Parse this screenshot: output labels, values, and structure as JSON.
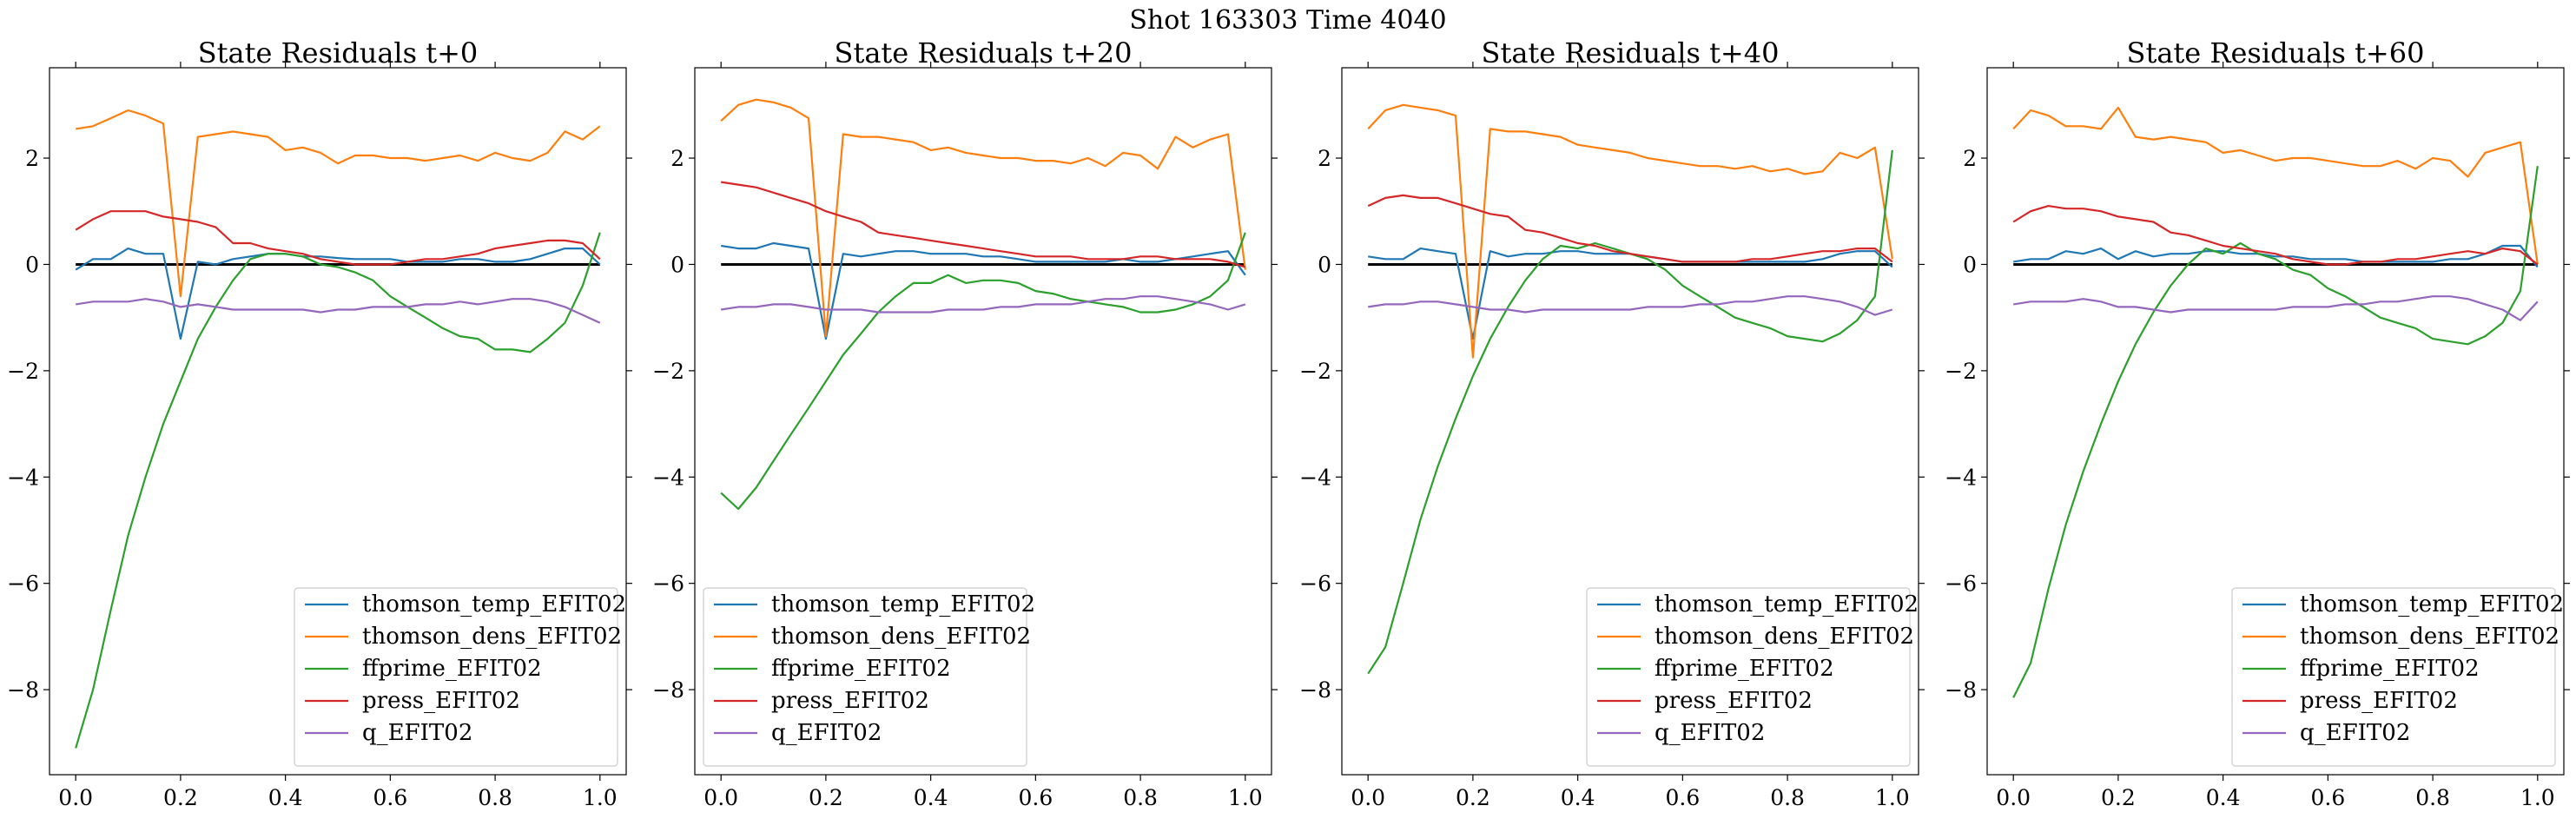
{
  "suptitle": "Shot 163303   Time 4040",
  "chart_data": [
    {
      "type": "line",
      "title": "State Residuals t+0",
      "xlim": [
        -0.05,
        1.05
      ],
      "ylim": [
        -9.6,
        3.7
      ],
      "xticks": [
        0.0,
        0.2,
        0.4,
        0.6,
        0.8,
        1.0
      ],
      "xtick_labels": [
        "0.0",
        "0.2",
        "0.4",
        "0.6",
        "0.8",
        "1.0"
      ],
      "yticks": [
        -8,
        -6,
        -4,
        -2,
        0,
        2
      ],
      "ytick_labels": [
        "−8",
        "−6",
        "−4",
        "−2",
        "0",
        "2"
      ],
      "legend_position": "lower-right",
      "reference_line": 0,
      "x": [
        0.0,
        0.033,
        0.067,
        0.1,
        0.133,
        0.167,
        0.2,
        0.233,
        0.267,
        0.3,
        0.333,
        0.367,
        0.4,
        0.433,
        0.467,
        0.5,
        0.533,
        0.567,
        0.6,
        0.633,
        0.667,
        0.7,
        0.733,
        0.767,
        0.8,
        0.833,
        0.867,
        0.9,
        0.933,
        0.967,
        1.0
      ],
      "series": [
        {
          "name": "thomson_temp_EFIT02",
          "color": "#1f77b4",
          "values": [
            -0.1,
            0.1,
            0.1,
            0.3,
            0.2,
            0.2,
            -1.4,
            0.05,
            0.0,
            0.1,
            0.15,
            0.2,
            0.2,
            0.15,
            0.15,
            0.12,
            0.1,
            0.1,
            0.1,
            0.05,
            0.05,
            0.05,
            0.1,
            0.1,
            0.05,
            0.05,
            0.1,
            0.2,
            0.3,
            0.3,
            0.0
          ]
        },
        {
          "name": "thomson_dens_EFIT02",
          "color": "#ff7f0e",
          "values": [
            2.55,
            2.6,
            2.75,
            2.9,
            2.8,
            2.65,
            -0.6,
            2.4,
            2.45,
            2.5,
            2.45,
            2.4,
            2.15,
            2.2,
            2.1,
            1.9,
            2.05,
            2.05,
            2.0,
            2.0,
            1.95,
            2.0,
            2.05,
            1.95,
            2.1,
            2.0,
            1.95,
            2.1,
            2.5,
            2.35,
            2.6
          ]
        },
        {
          "name": "ffprime_EFIT02",
          "color": "#2ca02c",
          "values": [
            -9.1,
            -8.0,
            -6.5,
            -5.1,
            -4.0,
            -3.0,
            -2.2,
            -1.4,
            -0.8,
            -0.3,
            0.1,
            0.2,
            0.2,
            0.15,
            0.0,
            -0.05,
            -0.15,
            -0.3,
            -0.6,
            -0.8,
            -1.0,
            -1.2,
            -1.35,
            -1.4,
            -1.6,
            -1.6,
            -1.65,
            -1.4,
            -1.1,
            -0.4,
            0.6
          ]
        },
        {
          "name": "press_EFIT02",
          "color": "#d62728",
          "values": [
            0.65,
            0.85,
            1.0,
            1.0,
            1.0,
            0.9,
            0.85,
            0.8,
            0.7,
            0.4,
            0.4,
            0.3,
            0.25,
            0.2,
            0.1,
            0.05,
            0.0,
            0.0,
            0.0,
            0.05,
            0.1,
            0.1,
            0.15,
            0.2,
            0.3,
            0.35,
            0.4,
            0.45,
            0.45,
            0.4,
            0.1
          ]
        },
        {
          "name": "q_EFIT02",
          "color": "#9467bd",
          "values": [
            -0.75,
            -0.7,
            -0.7,
            -0.7,
            -0.65,
            -0.7,
            -0.8,
            -0.75,
            -0.8,
            -0.85,
            -0.85,
            -0.85,
            -0.85,
            -0.85,
            -0.9,
            -0.85,
            -0.85,
            -0.8,
            -0.8,
            -0.8,
            -0.75,
            -0.75,
            -0.7,
            -0.75,
            -0.7,
            -0.65,
            -0.65,
            -0.7,
            -0.8,
            -0.95,
            -1.1
          ]
        }
      ]
    },
    {
      "type": "line",
      "title": "State Residuals t+20",
      "xlim": [
        -0.05,
        1.05
      ],
      "ylim": [
        -9.6,
        3.7
      ],
      "xticks": [
        0.0,
        0.2,
        0.4,
        0.6,
        0.8,
        1.0
      ],
      "xtick_labels": [
        "0.0",
        "0.2",
        "0.4",
        "0.6",
        "0.8",
        "1.0"
      ],
      "yticks": [
        -8,
        -6,
        -4,
        -2,
        0,
        2
      ],
      "ytick_labels": [
        "−8",
        "−6",
        "−4",
        "−2",
        "0",
        "2"
      ],
      "legend_position": "lower-left",
      "reference_line": 0,
      "x": [
        0.0,
        0.033,
        0.067,
        0.1,
        0.133,
        0.167,
        0.2,
        0.233,
        0.267,
        0.3,
        0.333,
        0.367,
        0.4,
        0.433,
        0.467,
        0.5,
        0.533,
        0.567,
        0.6,
        0.633,
        0.667,
        0.7,
        0.733,
        0.767,
        0.8,
        0.833,
        0.867,
        0.9,
        0.933,
        0.967,
        1.0
      ],
      "series": [
        {
          "name": "thomson_temp_EFIT02",
          "color": "#1f77b4",
          "values": [
            0.35,
            0.3,
            0.3,
            0.4,
            0.35,
            0.3,
            -1.4,
            0.2,
            0.15,
            0.2,
            0.25,
            0.25,
            0.2,
            0.2,
            0.2,
            0.15,
            0.15,
            0.1,
            0.05,
            0.05,
            0.05,
            0.05,
            0.05,
            0.1,
            0.05,
            0.05,
            0.1,
            0.15,
            0.2,
            0.25,
            -0.2
          ]
        },
        {
          "name": "thomson_dens_EFIT02",
          "color": "#ff7f0e",
          "values": [
            2.7,
            3.0,
            3.1,
            3.05,
            2.95,
            2.75,
            -1.35,
            2.45,
            2.4,
            2.4,
            2.35,
            2.3,
            2.15,
            2.2,
            2.1,
            2.05,
            2.0,
            2.0,
            1.95,
            1.95,
            1.9,
            2.0,
            1.85,
            2.1,
            2.05,
            1.8,
            2.4,
            2.2,
            2.35,
            2.45,
            -0.1
          ]
        },
        {
          "name": "ffprime_EFIT02",
          "color": "#2ca02c",
          "values": [
            -4.3,
            -4.6,
            -4.2,
            -3.7,
            -3.2,
            -2.7,
            -2.2,
            -1.7,
            -1.3,
            -0.9,
            -0.6,
            -0.35,
            -0.35,
            -0.2,
            -0.35,
            -0.3,
            -0.3,
            -0.35,
            -0.5,
            -0.55,
            -0.65,
            -0.7,
            -0.75,
            -0.8,
            -0.9,
            -0.9,
            -0.85,
            -0.75,
            -0.6,
            -0.3,
            0.6
          ]
        },
        {
          "name": "press_EFIT02",
          "color": "#d62728",
          "values": [
            1.55,
            1.5,
            1.45,
            1.35,
            1.25,
            1.15,
            1.0,
            0.9,
            0.8,
            0.6,
            0.55,
            0.5,
            0.45,
            0.4,
            0.35,
            0.3,
            0.25,
            0.2,
            0.15,
            0.15,
            0.15,
            0.1,
            0.1,
            0.1,
            0.15,
            0.15,
            0.1,
            0.1,
            0.1,
            0.05,
            -0.05
          ]
        },
        {
          "name": "q_EFIT02",
          "color": "#9467bd",
          "values": [
            -0.85,
            -0.8,
            -0.8,
            -0.75,
            -0.75,
            -0.8,
            -0.85,
            -0.85,
            -0.85,
            -0.9,
            -0.9,
            -0.9,
            -0.9,
            -0.85,
            -0.85,
            -0.85,
            -0.8,
            -0.8,
            -0.75,
            -0.75,
            -0.75,
            -0.7,
            -0.65,
            -0.65,
            -0.6,
            -0.6,
            -0.65,
            -0.7,
            -0.75,
            -0.85,
            -0.75
          ]
        }
      ]
    },
    {
      "type": "line",
      "title": "State Residuals t+40",
      "xlim": [
        -0.05,
        1.05
      ],
      "ylim": [
        -9.6,
        3.7
      ],
      "xticks": [
        0.0,
        0.2,
        0.4,
        0.6,
        0.8,
        1.0
      ],
      "xtick_labels": [
        "0.0",
        "0.2",
        "0.4",
        "0.6",
        "0.8",
        "1.0"
      ],
      "yticks": [
        -8,
        -6,
        -4,
        -2,
        0,
        2
      ],
      "ytick_labels": [
        "−8",
        "−6",
        "−4",
        "−2",
        "0",
        "2"
      ],
      "legend_position": "lower-right",
      "reference_line": 0,
      "x": [
        0.0,
        0.033,
        0.067,
        0.1,
        0.133,
        0.167,
        0.2,
        0.233,
        0.267,
        0.3,
        0.333,
        0.367,
        0.4,
        0.433,
        0.467,
        0.5,
        0.533,
        0.567,
        0.6,
        0.633,
        0.667,
        0.7,
        0.733,
        0.767,
        0.8,
        0.833,
        0.867,
        0.9,
        0.933,
        0.967,
        1.0
      ],
      "series": [
        {
          "name": "thomson_temp_EFIT02",
          "color": "#1f77b4",
          "values": [
            0.15,
            0.1,
            0.1,
            0.3,
            0.25,
            0.2,
            -1.4,
            0.25,
            0.15,
            0.2,
            0.2,
            0.25,
            0.25,
            0.2,
            0.2,
            0.2,
            0.15,
            0.1,
            0.05,
            0.05,
            0.05,
            0.05,
            0.05,
            0.05,
            0.05,
            0.05,
            0.1,
            0.2,
            0.25,
            0.25,
            -0.05
          ]
        },
        {
          "name": "thomson_dens_EFIT02",
          "color": "#ff7f0e",
          "values": [
            2.55,
            2.9,
            3.0,
            2.95,
            2.9,
            2.8,
            -1.75,
            2.55,
            2.5,
            2.5,
            2.45,
            2.4,
            2.25,
            2.2,
            2.15,
            2.1,
            2.0,
            1.95,
            1.9,
            1.85,
            1.85,
            1.8,
            1.85,
            1.75,
            1.8,
            1.7,
            1.75,
            2.1,
            2.0,
            2.2,
            0.1
          ]
        },
        {
          "name": "ffprime_EFIT02",
          "color": "#2ca02c",
          "values": [
            -7.7,
            -7.2,
            -6.0,
            -4.8,
            -3.8,
            -2.9,
            -2.1,
            -1.4,
            -0.8,
            -0.3,
            0.1,
            0.35,
            0.3,
            0.4,
            0.3,
            0.2,
            0.1,
            -0.1,
            -0.4,
            -0.6,
            -0.8,
            -1.0,
            -1.1,
            -1.2,
            -1.35,
            -1.4,
            -1.45,
            -1.3,
            -1.05,
            -0.6,
            2.15
          ]
        },
        {
          "name": "press_EFIT02",
          "color": "#d62728",
          "values": [
            1.1,
            1.25,
            1.3,
            1.25,
            1.25,
            1.15,
            1.05,
            0.95,
            0.9,
            0.65,
            0.6,
            0.5,
            0.4,
            0.35,
            0.25,
            0.2,
            0.15,
            0.1,
            0.05,
            0.05,
            0.05,
            0.05,
            0.1,
            0.1,
            0.15,
            0.2,
            0.25,
            0.25,
            0.3,
            0.3,
            0.05
          ]
        },
        {
          "name": "q_EFIT02",
          "color": "#9467bd",
          "values": [
            -0.8,
            -0.75,
            -0.75,
            -0.7,
            -0.7,
            -0.75,
            -0.8,
            -0.85,
            -0.85,
            -0.9,
            -0.85,
            -0.85,
            -0.85,
            -0.85,
            -0.85,
            -0.85,
            -0.8,
            -0.8,
            -0.8,
            -0.75,
            -0.75,
            -0.7,
            -0.7,
            -0.65,
            -0.6,
            -0.6,
            -0.65,
            -0.7,
            -0.8,
            -0.95,
            -0.85
          ]
        }
      ]
    },
    {
      "type": "line",
      "title": "State Residuals t+60",
      "xlim": [
        -0.05,
        1.05
      ],
      "ylim": [
        -9.6,
        3.7
      ],
      "xticks": [
        0.0,
        0.2,
        0.4,
        0.6,
        0.8,
        1.0
      ],
      "xtick_labels": [
        "0.0",
        "0.2",
        "0.4",
        "0.6",
        "0.8",
        "1.0"
      ],
      "yticks": [
        -8,
        -6,
        -4,
        -2,
        0,
        2
      ],
      "ytick_labels": [
        "−8",
        "−6",
        "−4",
        "−2",
        "0",
        "2"
      ],
      "legend_position": "lower-right",
      "reference_line": 0,
      "x": [
        0.0,
        0.033,
        0.067,
        0.1,
        0.133,
        0.167,
        0.2,
        0.233,
        0.267,
        0.3,
        0.333,
        0.367,
        0.4,
        0.433,
        0.467,
        0.5,
        0.533,
        0.567,
        0.6,
        0.633,
        0.667,
        0.7,
        0.733,
        0.767,
        0.8,
        0.833,
        0.867,
        0.9,
        0.933,
        0.967,
        1.0
      ],
      "series": [
        {
          "name": "thomson_temp_EFIT02",
          "color": "#1f77b4",
          "values": [
            0.05,
            0.1,
            0.1,
            0.25,
            0.2,
            0.3,
            0.1,
            0.25,
            0.15,
            0.2,
            0.2,
            0.25,
            0.25,
            0.2,
            0.2,
            0.15,
            0.15,
            0.1,
            0.1,
            0.1,
            0.05,
            0.05,
            0.05,
            0.05,
            0.05,
            0.1,
            0.1,
            0.2,
            0.35,
            0.35,
            -0.05
          ]
        },
        {
          "name": "thomson_dens_EFIT02",
          "color": "#ff7f0e",
          "values": [
            2.55,
            2.9,
            2.8,
            2.6,
            2.6,
            2.55,
            2.95,
            2.4,
            2.35,
            2.4,
            2.35,
            2.3,
            2.1,
            2.15,
            2.05,
            1.95,
            2.0,
            2.0,
            1.95,
            1.9,
            1.85,
            1.85,
            1.95,
            1.8,
            2.0,
            1.95,
            1.65,
            2.1,
            2.2,
            2.3,
            0.0
          ]
        },
        {
          "name": "ffprime_EFIT02",
          "color": "#2ca02c",
          "values": [
            -8.15,
            -7.5,
            -6.1,
            -4.9,
            -3.9,
            -3.0,
            -2.2,
            -1.5,
            -0.9,
            -0.4,
            0.0,
            0.3,
            0.2,
            0.4,
            0.2,
            0.1,
            -0.1,
            -0.2,
            -0.45,
            -0.6,
            -0.8,
            -1.0,
            -1.1,
            -1.2,
            -1.4,
            -1.45,
            -1.5,
            -1.35,
            -1.1,
            -0.5,
            1.85
          ]
        },
        {
          "name": "press_EFIT02",
          "color": "#d62728",
          "values": [
            0.8,
            1.0,
            1.1,
            1.05,
            1.05,
            1.0,
            0.9,
            0.85,
            0.8,
            0.6,
            0.55,
            0.45,
            0.35,
            0.3,
            0.25,
            0.2,
            0.1,
            0.05,
            0.0,
            0.0,
            0.05,
            0.05,
            0.1,
            0.1,
            0.15,
            0.2,
            0.25,
            0.2,
            0.3,
            0.25,
            0.0
          ]
        },
        {
          "name": "q_EFIT02",
          "color": "#9467bd",
          "values": [
            -0.75,
            -0.7,
            -0.7,
            -0.7,
            -0.65,
            -0.7,
            -0.8,
            -0.8,
            -0.85,
            -0.9,
            -0.85,
            -0.85,
            -0.85,
            -0.85,
            -0.85,
            -0.85,
            -0.8,
            -0.8,
            -0.8,
            -0.75,
            -0.75,
            -0.7,
            -0.7,
            -0.65,
            -0.6,
            -0.6,
            -0.65,
            -0.75,
            -0.85,
            -1.05,
            -0.7
          ]
        }
      ]
    }
  ]
}
